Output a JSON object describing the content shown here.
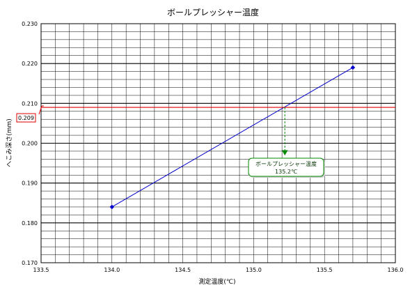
{
  "chart_data": {
    "type": "line",
    "title": "ボールプレッシャー温度",
    "xlabel": "測定温度(℃)",
    "ylabel": "へこみ深さ(mm)",
    "xlim": [
      133.5,
      136.0
    ],
    "ylim": [
      0.17,
      0.23
    ],
    "x_ticks": [
      "133.5",
      "134.0",
      "134.5",
      "135.0",
      "135.5",
      "136.0"
    ],
    "y_ticks": [
      "0.170",
      "0.180",
      "0.190",
      "0.200",
      "0.210",
      "0.220",
      "0.230"
    ],
    "grid": true,
    "series": [
      {
        "name": "",
        "color": "#0000cc",
        "points": [
          {
            "x": 134.0,
            "y": 0.184
          },
          {
            "x": 135.7,
            "y": 0.219
          }
        ]
      }
    ],
    "threshold": {
      "value": 0.209,
      "label": "0.209",
      "color": "#dd0000"
    },
    "intersection": {
      "x": 135.22,
      "y": 0.209,
      "color": "#008800"
    },
    "callout": {
      "line1": "ボールプレッシャー温度",
      "line2": "135.2℃",
      "border_color": "#008800"
    }
  }
}
